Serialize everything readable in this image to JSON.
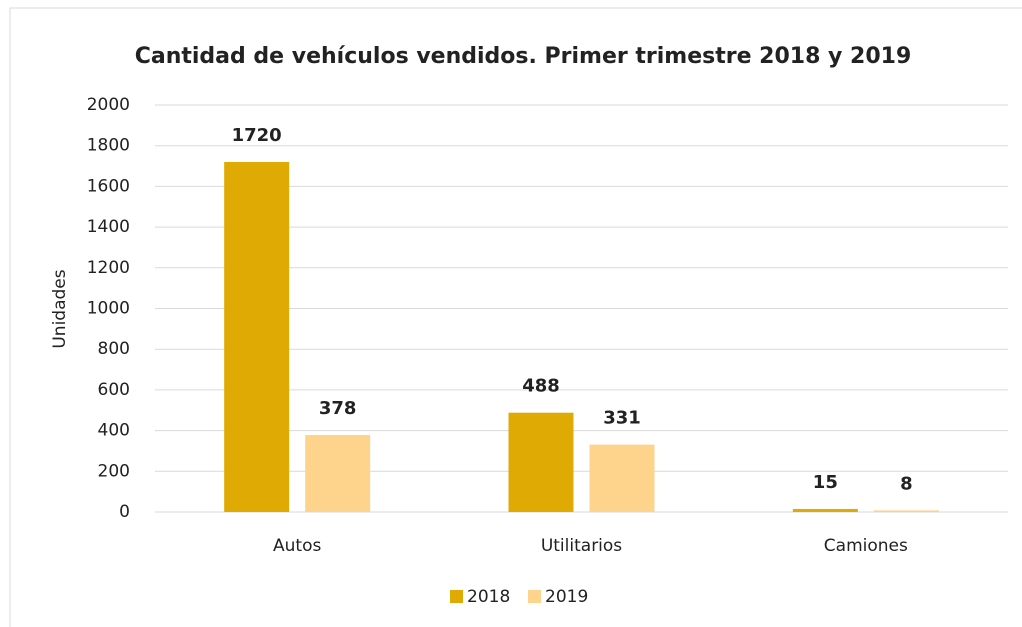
{
  "chart_data": {
    "type": "bar",
    "title": "Cantidad de vehículos vendidos. Primer trimestre 2018 y 2019",
    "y_label": "Unidades",
    "categories": [
      "Autos",
      "Utilitarios",
      "Camiones"
    ],
    "series": [
      {
        "name": "2018",
        "color": "#e0aa05",
        "values": [
          1720,
          488,
          15
        ]
      },
      {
        "name": "2019",
        "color": "#fed38b",
        "values": [
          378,
          331,
          8
        ]
      }
    ],
    "ylim": [
      0,
      2000
    ],
    "yticks": [
      0,
      200,
      400,
      600,
      800,
      1000,
      1200,
      1400,
      1600,
      1800,
      2000
    ],
    "grid": true,
    "legend": "bottom"
  }
}
